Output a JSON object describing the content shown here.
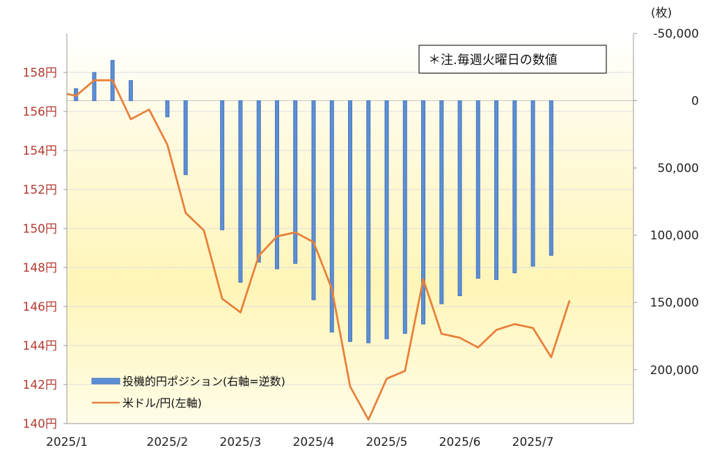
{
  "chart_data": {
    "type": "bar+line",
    "annotation": "＊注.毎週火曜日の数値",
    "right_unit": "(枚)",
    "legend": [
      {
        "label": "投機的円ポジション(右軸=逆数)",
        "kind": "bar",
        "color": "#5b8fd6"
      },
      {
        "label": "米ドル/円(左軸)",
        "kind": "line",
        "color": "#e8803a"
      }
    ],
    "left_axis": {
      "ticks": [
        140,
        142,
        144,
        146,
        148,
        150,
        152,
        154,
        156,
        158
      ],
      "tick_labels": [
        "140円",
        "142円",
        "144円",
        "146円",
        "148円",
        "150円",
        "152円",
        "154円",
        "156円",
        "158円"
      ],
      "range": [
        140,
        160
      ],
      "color": "#b23a2e"
    },
    "right_axis": {
      "ticks": [
        -50000,
        0,
        50000,
        100000,
        150000,
        200000
      ],
      "tick_labels": [
        "-50,000",
        "0",
        "50,000",
        "100,000",
        "150,000",
        "200,000"
      ],
      "inverted": true,
      "range": [
        -50000,
        240000
      ]
    },
    "x_axis": {
      "tick_labels": [
        "2025/1",
        "2025/2",
        "2025/3",
        "2025/4",
        "2025/5",
        "2025/6",
        "2025/7"
      ],
      "week_index_of_ticks": [
        0,
        5.5,
        9.5,
        13.5,
        17.5,
        21.5,
        25.5
      ],
      "weeks_range": [
        0,
        31
      ]
    },
    "series": [
      {
        "name": "投機的円ポジション(右軸=逆数)",
        "type": "bar",
        "axis": "right",
        "x": [
          0.5,
          1.5,
          2.5,
          3.5,
          5.5,
          6.5,
          7.5,
          8.5,
          9.5,
          10.5,
          11.5,
          12.5,
          13.5,
          14.5,
          15.5,
          16.5,
          17.5,
          18.5,
          19.5,
          20.5,
          21.5,
          22.5,
          23.5,
          24.5,
          25.5,
          26.5,
          27.5
        ],
        "values": [
          -9000,
          -21000,
          -30000,
          -15000,
          12000,
          55000,
          0,
          96000,
          135000,
          120000,
          125000,
          121000,
          148000,
          172000,
          179000,
          180000,
          177000,
          173000,
          166000,
          151000,
          145000,
          132000,
          133000,
          128000,
          123000,
          115000,
          0
        ]
      },
      {
        "name": "米ドル/円(左軸)",
        "type": "line",
        "axis": "left",
        "x": [
          0,
          0.5,
          1.5,
          2.5,
          3.5,
          4.5,
          5.5,
          6.5,
          7.5,
          8.5,
          9.5,
          10.5,
          11.5,
          12.5,
          13.5,
          14.5,
          15.5,
          16.5,
          17.5,
          18.5,
          19.5,
          20.5,
          21.5,
          22.5,
          23.5,
          24.5,
          25.5,
          26.5,
          27.5
        ],
        "values": [
          156.9,
          156.8,
          157.6,
          157.6,
          155.6,
          156.1,
          154.3,
          150.8,
          149.9,
          146.4,
          145.7,
          148.6,
          149.6,
          149.8,
          149.3,
          146.9,
          141.9,
          140.2,
          142.3,
          142.7,
          147.4,
          144.6,
          144.4,
          143.9,
          144.8,
          145.1,
          144.9,
          143.4,
          146.3
        ]
      }
    ],
    "grid": true,
    "legend_position": "lower-left",
    "background": "yellow gradient"
  }
}
